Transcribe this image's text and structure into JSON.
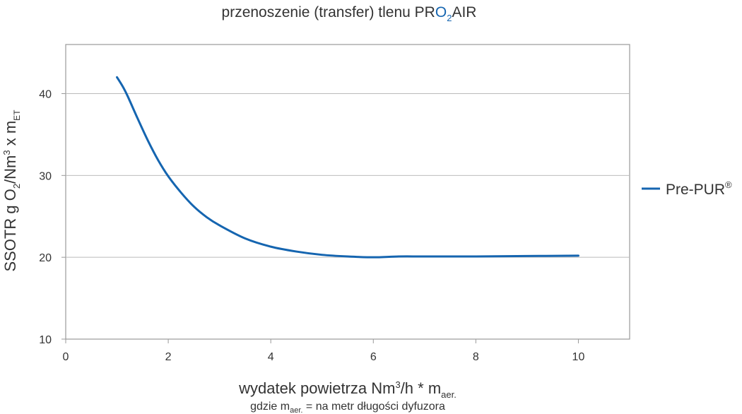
{
  "chart_data": {
    "type": "line",
    "title": {
      "prefix": "przenoszenie (transfer) tlenu ",
      "brand_p1": "PR",
      "brand_o": "O",
      "brand_sub": "2",
      "brand_p2": "AIR"
    },
    "ylabel": {
      "part1": "SSOTR g O",
      "sub1": "2",
      "part2": "/Nm",
      "sup1": "3",
      "part3": " x m",
      "sub2": "ET"
    },
    "xlabel": {
      "part1": "wydatek powietrza Nm",
      "sup1": "3",
      "part2": "/h * m",
      "sub1": "aer."
    },
    "xnote": {
      "part1": "gdzie m",
      "sub1": "aer.",
      "part2": " = na metr długości dyfuzora"
    },
    "xlim": [
      0,
      11
    ],
    "ylim": [
      10,
      46
    ],
    "xticks": [
      0,
      2,
      4,
      6,
      8,
      10
    ],
    "yticks": [
      10,
      20,
      30,
      40
    ],
    "grid": "horizontal",
    "legend_position": "right",
    "series": [
      {
        "name": "Pre-PUR",
        "name_sup": "®",
        "color": "#1565b0",
        "x": [
          1.0,
          1.1,
          1.2,
          1.4,
          1.6,
          1.8,
          2.0,
          2.25,
          2.5,
          2.75,
          3.0,
          3.5,
          4.0,
          4.5,
          5.0,
          5.5,
          6.0,
          6.5,
          7.0,
          8.0,
          9.0,
          10.0
        ],
        "y": [
          42.0,
          41.0,
          39.8,
          37.0,
          34.3,
          31.9,
          29.9,
          27.9,
          26.2,
          24.9,
          23.9,
          22.3,
          21.3,
          20.7,
          20.3,
          20.1,
          20.0,
          20.1,
          20.1,
          20.1,
          20.15,
          20.2
        ]
      }
    ],
    "colors": {
      "axis": "#999999",
      "grid": "#bbbbbb",
      "text": "#333333",
      "brand": "#1565b0"
    }
  }
}
